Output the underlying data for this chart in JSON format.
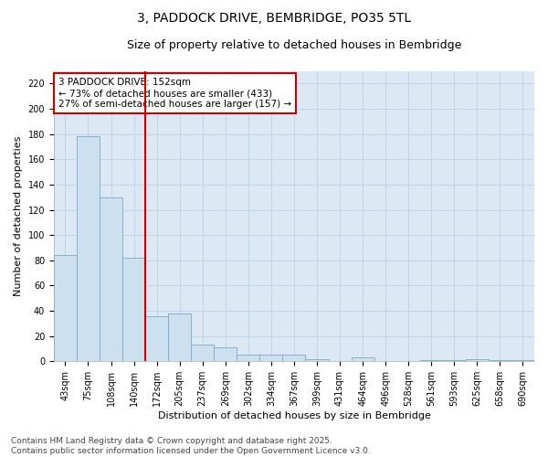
{
  "title_line1": "3, PADDOCK DRIVE, BEMBRIDGE, PO35 5TL",
  "title_line2": "Size of property relative to detached houses in Bembridge",
  "xlabel": "Distribution of detached houses by size in Bembridge",
  "ylabel": "Number of detached properties",
  "categories": [
    "43sqm",
    "75sqm",
    "108sqm",
    "140sqm",
    "172sqm",
    "205sqm",
    "237sqm",
    "269sqm",
    "302sqm",
    "334sqm",
    "367sqm",
    "399sqm",
    "431sqm",
    "464sqm",
    "496sqm",
    "528sqm",
    "561sqm",
    "593sqm",
    "625sqm",
    "658sqm",
    "690sqm"
  ],
  "values": [
    84,
    178,
    130,
    82,
    36,
    38,
    13,
    11,
    5,
    5,
    5,
    2,
    0,
    3,
    0,
    0,
    1,
    1,
    2,
    1,
    1
  ],
  "bar_color": "#cde0f0",
  "bar_edge_color": "#7aaac8",
  "vline_x": 3.5,
  "vline_color": "#cc0000",
  "annotation_text": "3 PADDOCK DRIVE: 152sqm\n← 73% of detached houses are smaller (433)\n27% of semi-detached houses are larger (157) →",
  "annotation_box_facecolor": "#ffffff",
  "annotation_box_edgecolor": "#cc0000",
  "ylim": [
    0,
    230
  ],
  "yticks": [
    0,
    20,
    40,
    60,
    80,
    100,
    120,
    140,
    160,
    180,
    200,
    220
  ],
  "grid_color": "#c0d4e8",
  "plot_bg_color": "#dce8f4",
  "fig_bg_color": "#ffffff",
  "footnote": "Contains HM Land Registry data © Crown copyright and database right 2025.\nContains public sector information licensed under the Open Government Licence v3.0.",
  "title_fontsize": 10,
  "subtitle_fontsize": 9,
  "axis_label_fontsize": 8,
  "tick_fontsize": 7,
  "annotation_fontsize": 7.5,
  "footnote_fontsize": 6.5
}
